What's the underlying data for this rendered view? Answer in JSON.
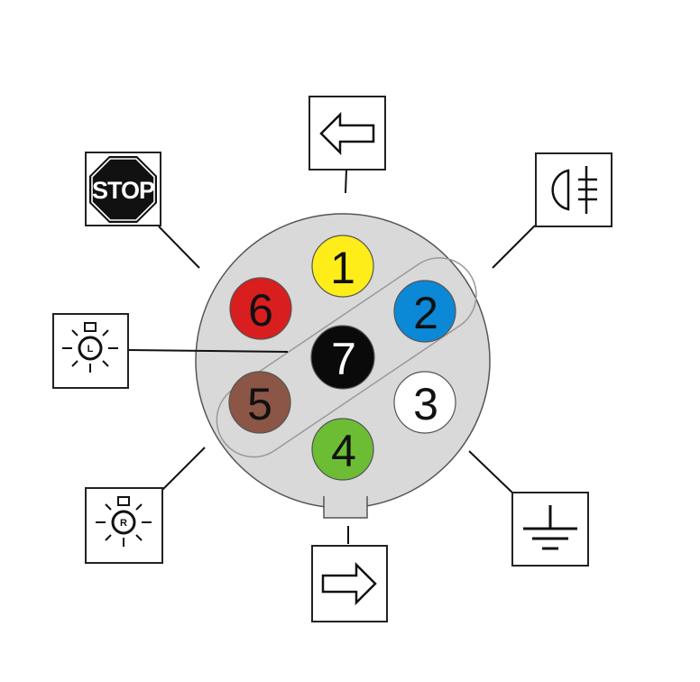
{
  "connector": {
    "body_color": "#d9d9d9",
    "outline_color": "#555555"
  },
  "pins": [
    {
      "number": "1",
      "color": "#ffed1a",
      "text_color": "#111111"
    },
    {
      "number": "2",
      "color": "#0b88d6",
      "text_color": "#111111"
    },
    {
      "number": "3",
      "color": "#ffffff",
      "text_color": "#111111"
    },
    {
      "number": "4",
      "color": "#6cbd34",
      "text_color": "#111111"
    },
    {
      "number": "5",
      "color": "#8b5646",
      "text_color": "#111111"
    },
    {
      "number": "6",
      "color": "#d81e1e",
      "text_color": "#111111"
    },
    {
      "number": "7",
      "color": "#0a0a0a",
      "text_color": "#ffffff"
    }
  ],
  "symbols": {
    "stop": {
      "text": "STOP",
      "icon": "stop-sign-icon",
      "color": "#111111"
    },
    "left_indicator": {
      "icon": "arrow-left-icon"
    },
    "fog_light": {
      "icon": "rear-fog-light-icon"
    },
    "left_tail_light": {
      "letter": "L",
      "icon": "tail-light-left-icon"
    },
    "right_tail_light": {
      "letter": "R",
      "icon": "tail-light-right-icon"
    },
    "ground": {
      "icon": "ground-icon"
    },
    "right_indicator": {
      "icon": "arrow-right-icon"
    }
  }
}
